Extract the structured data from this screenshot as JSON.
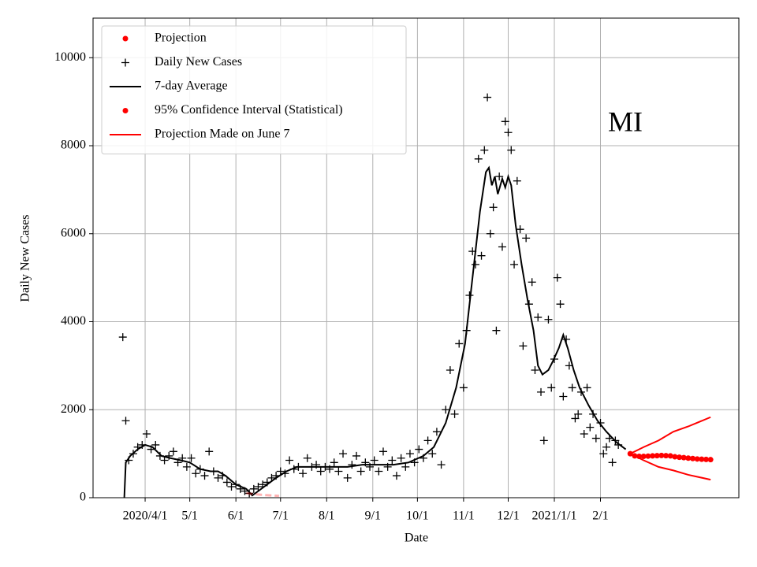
{
  "chart_data": {
    "type": "scatter",
    "xlabel": "Date",
    "ylabel": "Daily New Cases",
    "annotation": "MI",
    "xlim": [
      "2020-02-26",
      "2021-05-05"
    ],
    "ylim": [
      0,
      10900
    ],
    "yticks": [
      0,
      2000,
      4000,
      6000,
      8000,
      10000
    ],
    "xticks": [
      {
        "value": "2020-04-01",
        "label": "2020/4/1"
      },
      {
        "value": "2020-05-01",
        "label": "5/1"
      },
      {
        "value": "2020-06-01",
        "label": "6/1"
      },
      {
        "value": "2020-07-01",
        "label": "7/1"
      },
      {
        "value": "2020-08-01",
        "label": "8/1"
      },
      {
        "value": "2020-09-01",
        "label": "9/1"
      },
      {
        "value": "2020-10-01",
        "label": "10/1"
      },
      {
        "value": "2020-11-01",
        "label": "11/1"
      },
      {
        "value": "2020-12-01",
        "label": "12/1"
      },
      {
        "value": "2021-01-01",
        "label": "2021/1/1"
      },
      {
        "value": "2021-02-01",
        "label": "2/1"
      }
    ],
    "grid": true,
    "legend": "upper left",
    "series": [
      {
        "name": "Projection",
        "color": "#ff0000",
        "marker": "dot",
        "x": [
          "2021-02-21",
          "2021-02-24",
          "2021-02-27",
          "2021-03-02",
          "2021-03-05",
          "2021-03-08",
          "2021-03-11",
          "2021-03-14",
          "2021-03-17",
          "2021-03-20",
          "2021-03-23",
          "2021-03-26",
          "2021-03-29",
          "2021-04-01",
          "2021-04-04",
          "2021-04-07",
          "2021-04-10",
          "2021-04-13",
          "2021-04-16"
        ],
        "values": [
          1000,
          950,
          940,
          940,
          945,
          950,
          955,
          960,
          955,
          950,
          930,
          920,
          910,
          900,
          890,
          880,
          875,
          870,
          865
        ]
      },
      {
        "name": "Daily New Cases",
        "color": "#000000",
        "marker": "plus",
        "x": [
          "2020-03-17",
          "2020-03-19",
          "2020-03-21",
          "2020-03-24",
          "2020-03-27",
          "2020-03-30",
          "2020-04-02",
          "2020-04-05",
          "2020-04-08",
          "2020-04-11",
          "2020-04-14",
          "2020-04-17",
          "2020-04-20",
          "2020-04-23",
          "2020-04-26",
          "2020-04-29",
          "2020-05-02",
          "2020-05-05",
          "2020-05-08",
          "2020-05-11",
          "2020-05-14",
          "2020-05-17",
          "2020-05-20",
          "2020-05-23",
          "2020-05-26",
          "2020-05-29",
          "2020-06-01",
          "2020-06-04",
          "2020-06-07",
          "2020-06-10",
          "2020-06-13",
          "2020-06-16",
          "2020-06-19",
          "2020-06-22",
          "2020-06-25",
          "2020-06-28",
          "2020-07-01",
          "2020-07-04",
          "2020-07-07",
          "2020-07-10",
          "2020-07-13",
          "2020-07-16",
          "2020-07-19",
          "2020-07-22",
          "2020-07-25",
          "2020-07-28",
          "2020-07-31",
          "2020-08-03",
          "2020-08-06",
          "2020-08-09",
          "2020-08-12",
          "2020-08-15",
          "2020-08-18",
          "2020-08-21",
          "2020-08-24",
          "2020-08-27",
          "2020-08-30",
          "2020-09-02",
          "2020-09-05",
          "2020-09-08",
          "2020-09-11",
          "2020-09-14",
          "2020-09-17",
          "2020-09-20",
          "2020-09-23",
          "2020-09-26",
          "2020-09-29",
          "2020-10-02",
          "2020-10-05",
          "2020-10-08",
          "2020-10-11",
          "2020-10-14",
          "2020-10-17",
          "2020-10-20",
          "2020-10-23",
          "2020-10-26",
          "2020-10-29",
          "2020-11-01",
          "2020-11-03",
          "2020-11-05",
          "2020-11-07",
          "2020-11-09",
          "2020-11-11",
          "2020-11-13",
          "2020-11-15",
          "2020-11-17",
          "2020-11-19",
          "2020-11-21",
          "2020-11-23",
          "2020-11-25",
          "2020-11-27",
          "2020-11-29",
          "2020-12-01",
          "2020-12-03",
          "2020-12-05",
          "2020-12-07",
          "2020-12-09",
          "2020-12-11",
          "2020-12-13",
          "2020-12-15",
          "2020-12-17",
          "2020-12-19",
          "2020-12-21",
          "2020-12-23",
          "2020-12-25",
          "2020-12-28",
          "2020-12-30",
          "2021-01-01",
          "2021-01-03",
          "2021-01-05",
          "2021-01-07",
          "2021-01-09",
          "2021-01-11",
          "2021-01-13",
          "2021-01-15",
          "2021-01-17",
          "2021-01-19",
          "2021-01-21",
          "2021-01-23",
          "2021-01-25",
          "2021-01-27",
          "2021-01-29",
          "2021-02-01",
          "2021-02-03",
          "2021-02-05",
          "2021-02-07",
          "2021-02-09",
          "2021-02-11",
          "2021-02-13"
        ],
        "values": [
          3650,
          1750,
          850,
          1000,
          1150,
          1200,
          1450,
          1100,
          1200,
          950,
          850,
          950,
          1050,
          800,
          900,
          700,
          900,
          550,
          650,
          500,
          1050,
          600,
          450,
          500,
          350,
          250,
          300,
          200,
          150,
          100,
          200,
          250,
          300,
          350,
          450,
          500,
          600,
          550,
          850,
          650,
          700,
          550,
          900,
          700,
          750,
          600,
          700,
          650,
          800,
          600,
          1000,
          450,
          750,
          950,
          600,
          800,
          700,
          850,
          600,
          1050,
          700,
          850,
          500,
          900,
          700,
          1000,
          800,
          1100,
          900,
          1300,
          1000,
          1500,
          750,
          2000,
          2900,
          1900,
          3500,
          2500,
          3800,
          4600,
          5600,
          5300,
          7700,
          5500,
          7900,
          9100,
          6000,
          6600,
          3800,
          7300,
          5700,
          8550,
          8300,
          7900,
          5300,
          7200,
          6100,
          3450,
          5900,
          4400,
          4900,
          2900,
          4100,
          2400,
          1300,
          4050,
          2500,
          3150,
          5000,
          4400,
          2300,
          3600,
          3000,
          2500,
          1800,
          1900,
          2400,
          1450,
          2500,
          1600,
          1900,
          1350,
          1700,
          1000,
          1150,
          1350,
          800,
          1300,
          1200
        ]
      },
      {
        "name": "7-day Average",
        "color": "#000000",
        "marker": "line",
        "x": [
          "2020-03-18",
          "2020-03-19",
          "2020-03-22",
          "2020-03-27",
          "2020-04-01",
          "2020-04-06",
          "2020-04-12",
          "2020-04-18",
          "2020-04-25",
          "2020-05-01",
          "2020-05-08",
          "2020-05-15",
          "2020-05-20",
          "2020-05-25",
          "2020-06-01",
          "2020-06-08",
          "2020-06-12",
          "2020-06-16",
          "2020-06-22",
          "2020-06-28",
          "2020-07-05",
          "2020-07-12",
          "2020-07-20",
          "2020-07-28",
          "2020-08-05",
          "2020-08-15",
          "2020-08-25",
          "2020-09-05",
          "2020-09-15",
          "2020-09-25",
          "2020-10-05",
          "2020-10-12",
          "2020-10-20",
          "2020-10-27",
          "2020-11-02",
          "2020-11-07",
          "2020-11-12",
          "2020-11-16",
          "2020-11-18",
          "2020-11-20",
          "2020-11-22",
          "2020-11-24",
          "2020-11-27",
          "2020-11-29",
          "2020-12-01",
          "2020-12-03",
          "2020-12-06",
          "2020-12-10",
          "2020-12-14",
          "2020-12-18",
          "2020-12-21",
          "2020-12-24",
          "2020-12-28",
          "2020-12-31",
          "2021-01-04",
          "2021-01-07",
          "2021-01-10",
          "2021-01-14",
          "2021-01-18",
          "2021-01-24",
          "2021-01-30",
          "2021-02-05",
          "2021-02-12",
          "2021-02-18"
        ],
        "values": [
          0,
          800,
          950,
          1100,
          1200,
          1150,
          950,
          900,
          850,
          800,
          650,
          600,
          600,
          500,
          300,
          200,
          50,
          150,
          300,
          450,
          600,
          700,
          700,
          700,
          700,
          700,
          750,
          750,
          750,
          800,
          950,
          1150,
          1700,
          2500,
          3500,
          5000,
          6500,
          7400,
          7500,
          7100,
          7300,
          6900,
          7250,
          7050,
          7300,
          7100,
          6200,
          5300,
          4500,
          3800,
          3000,
          2800,
          2900,
          3100,
          3400,
          3700,
          3400,
          2900,
          2500,
          2100,
          1750,
          1500,
          1250,
          1100
        ]
      },
      {
        "name": "95% Confidence Interval (Statistical)",
        "color": "#ff0000",
        "marker": "dot",
        "style": "lines",
        "x": [
          "2021-02-21",
          "2021-03-02",
          "2021-03-12",
          "2021-03-22",
          "2021-04-01",
          "2021-04-16"
        ],
        "values": [
          1000,
          1150,
          1300,
          1500,
          1620,
          1830
        ],
        "lower": [
          1000,
          850,
          700,
          620,
          520,
          410
        ]
      },
      {
        "name": "Projection Made on June 7",
        "color": "#ff0000",
        "marker": "line",
        "alpha": 0.3,
        "x": [
          "2020-06-08",
          "2020-06-14",
          "2020-06-20",
          "2020-06-26",
          "2020-06-30"
        ],
        "values": [
          100,
          80,
          60,
          50,
          40
        ]
      }
    ]
  }
}
